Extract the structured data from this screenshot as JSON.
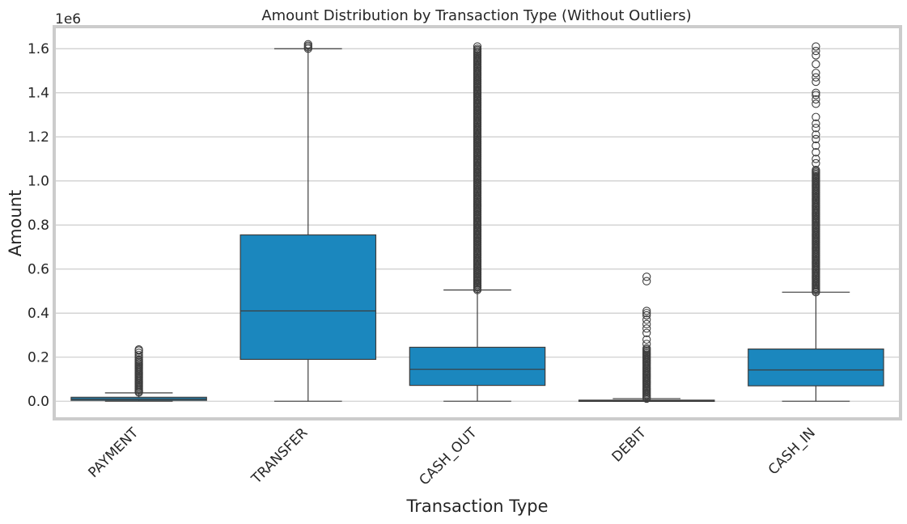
{
  "chart_data": {
    "type": "box",
    "title": "Amount Distribution by Transaction Type (Without Outliers)",
    "xlabel": "Transaction Type",
    "ylabel": "Amount",
    "offset_label": "1e6",
    "ylim": [
      -0.08,
      1.7
    ],
    "yticks": [
      "0.0",
      "0.2",
      "0.4",
      "0.6",
      "0.8",
      "1.0",
      "1.2",
      "1.4",
      "1.6"
    ],
    "ytick_values": [
      0.0,
      0.2,
      0.4,
      0.6,
      0.8,
      1.0,
      1.2,
      1.4,
      1.6
    ],
    "grid": true,
    "box_color": "#1b87be",
    "line_color": "#3d3d3d",
    "categories": [
      "PAYMENT",
      "TRANSFER",
      "CASH_OUT",
      "DEBIT",
      "CASH_IN"
    ],
    "boxes": [
      {
        "category": "PAYMENT",
        "min": 0.0,
        "q1": 0.004,
        "median": 0.01,
        "q3": 0.018,
        "max": 0.038,
        "fliers_dense": [
          0.04,
          0.19
        ],
        "fliers": [
          0.2,
          0.21,
          0.22,
          0.23,
          0.235
        ]
      },
      {
        "category": "TRANSFER",
        "min": 0.0,
        "q1": 0.19,
        "median": 0.41,
        "q3": 0.755,
        "max": 1.6,
        "fliers_dense": [
          1.6,
          1.62
        ],
        "fliers": []
      },
      {
        "category": "CASH_OUT",
        "min": 0.0,
        "q1": 0.072,
        "median": 0.145,
        "q3": 0.245,
        "max": 0.505,
        "fliers_dense": [
          0.505,
          1.6
        ],
        "fliers": [
          1.61
        ]
      },
      {
        "category": "DEBIT",
        "min": 0.0,
        "q1": 0.0,
        "median": 0.002,
        "q3": 0.005,
        "max": 0.012,
        "fliers_dense": [
          0.012,
          0.24
        ],
        "fliers": [
          0.26,
          0.28,
          0.31,
          0.33,
          0.35,
          0.37,
          0.39,
          0.4,
          0.41,
          0.545,
          0.565
        ]
      },
      {
        "category": "CASH_IN",
        "min": 0.0,
        "q1": 0.07,
        "median": 0.142,
        "q3": 0.237,
        "max": 0.495,
        "fliers_dense": [
          0.495,
          1.05
        ],
        "fliers": [
          1.08,
          1.1,
          1.13,
          1.16,
          1.19,
          1.21,
          1.24,
          1.26,
          1.29,
          1.35,
          1.37,
          1.39,
          1.4,
          1.45,
          1.47,
          1.49,
          1.53,
          1.57,
          1.59,
          1.61
        ]
      }
    ]
  }
}
